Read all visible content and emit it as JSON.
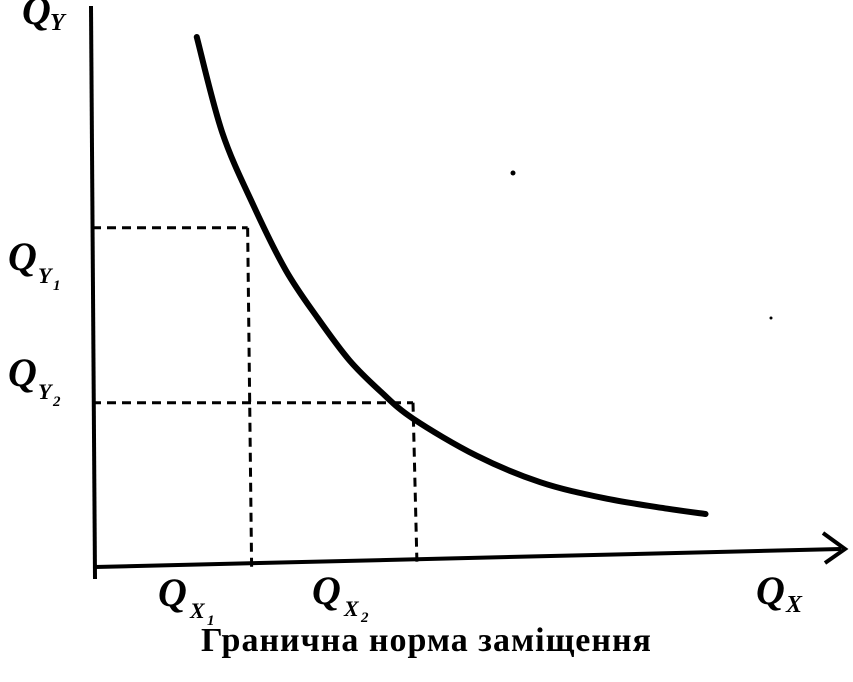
{
  "chart_data": {
    "type": "line",
    "series": [
      {
        "values": [
          [
            0.16,
            1.0
          ],
          [
            0.2,
            0.82
          ],
          [
            0.25,
            0.68
          ],
          [
            0.3,
            0.56
          ],
          [
            0.35,
            0.47
          ],
          [
            0.4,
            0.39
          ],
          [
            0.45,
            0.33
          ],
          [
            0.5,
            0.28
          ],
          [
            0.6,
            0.21
          ],
          [
            0.7,
            0.16
          ],
          [
            0.8,
            0.13
          ],
          [
            0.9,
            0.11
          ],
          [
            0.96,
            0.1
          ]
        ]
      }
    ],
    "points": [
      {
        "x": 0.24,
        "y": 0.64
      },
      {
        "x": 0.5,
        "y": 0.31
      }
    ],
    "labels": {
      "y_axis": {
        "letter": "Q",
        "sub": "Y"
      },
      "x_axis": {
        "letter": "Q",
        "sub": "X"
      },
      "qy1": {
        "letter": "Q",
        "sub": "Y",
        "subsub": "1"
      },
      "qy2": {
        "letter": "Q",
        "sub": "Y",
        "subsub": "2"
      },
      "qx1": {
        "letter": "Q",
        "sub": "X",
        "subsub": "1"
      },
      "qx2": {
        "letter": "Q",
        "sub": "X",
        "subsub": "2"
      }
    },
    "caption": "Гранична норма заміщення",
    "xlim": [
      0,
      1.1
    ],
    "ylim": [
      0,
      1.05
    ],
    "grid": false,
    "legend": "none"
  }
}
